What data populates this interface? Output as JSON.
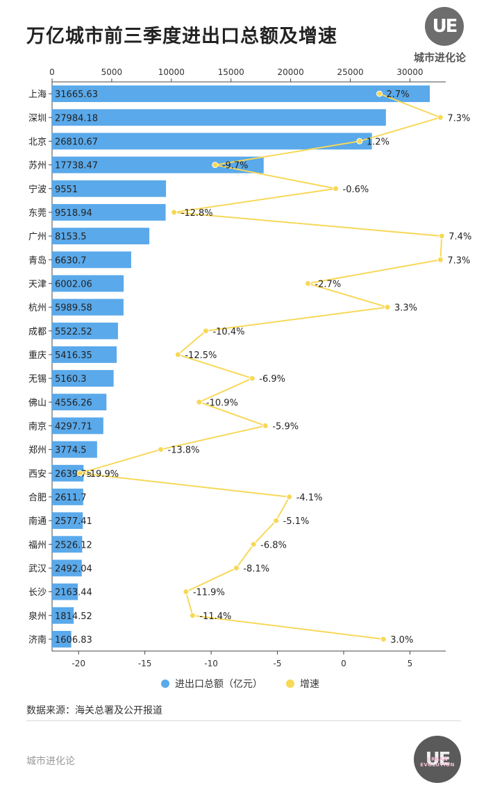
{
  "header": {
    "title": "万亿城市前三季度进出口总额及增速",
    "brand": "城市进化论",
    "logo_text": "UE",
    "logo_sub": "URBAN EVOLUTION"
  },
  "footer": {
    "source": "数据来源：海关总署及公开报道",
    "brand": "城市进化论"
  },
  "colors": {
    "bar": "#5aa9ea",
    "line": "#f7d857",
    "text": "#222222",
    "axis": "#444444"
  },
  "chart_data": {
    "type": "bar",
    "orientation": "horizontal",
    "categories": [
      "上海",
      "深圳",
      "北京",
      "苏州",
      "宁波",
      "东莞",
      "广州",
      "青岛",
      "天津",
      "杭州",
      "成都",
      "重庆",
      "无锡",
      "佛山",
      "南京",
      "郑州",
      "西安",
      "合肥",
      "南通",
      "福州",
      "武汉",
      "长沙",
      "泉州",
      "济南"
    ],
    "series": [
      {
        "name": "进出口总额（亿元）",
        "type": "bar",
        "axis": "top",
        "values": [
          31665.63,
          27984.18,
          26810.67,
          17738.47,
          9551,
          9518.94,
          8153.5,
          6630.7,
          6002.06,
          5989.58,
          5522.52,
          5416.35,
          5160.3,
          4556.26,
          4297.71,
          3774.5,
          2639.75,
          2611.7,
          2577.41,
          2526.12,
          2492.04,
          2163.44,
          1814.52,
          1606.83
        ],
        "labels": [
          "31665.63",
          "27984.18",
          "26810.67",
          "17738.47",
          "9551",
          "9518.94",
          "8153.5",
          "6630.7",
          "6002.06",
          "5989.58",
          "5522.52",
          "5416.35",
          "5160.3",
          "4556.26",
          "4297.71",
          "3774.5",
          "2639.75",
          "2611.7",
          "2577.41",
          "2526.12",
          "2492.04",
          "2163.44",
          "1814.52",
          "1606.83"
        ]
      },
      {
        "name": "增速",
        "type": "line",
        "axis": "bottom",
        "values": [
          2.7,
          7.3,
          1.2,
          -9.7,
          -0.6,
          -12.8,
          7.4,
          7.3,
          -2.7,
          3.3,
          -10.4,
          -12.5,
          -6.9,
          -10.9,
          -5.9,
          -13.8,
          -19.9,
          -4.1,
          -5.1,
          -6.8,
          -8.1,
          -11.9,
          -11.4,
          3.0
        ],
        "labels": [
          "2.7%",
          "7.3%",
          "1.2%",
          "-9.7%",
          "-0.6%",
          "-12.8%",
          "7.4%",
          "7.3%",
          "-2.7%",
          "3.3%",
          "-10.4%",
          "-12.5%",
          "-6.9%",
          "-10.9%",
          "-5.9%",
          "-13.8%",
          "-19.9%",
          "-4.1%",
          "-5.1%",
          "-6.8%",
          "-8.1%",
          "-11.9%",
          "-11.4%",
          "3.0%"
        ]
      }
    ],
    "top_axis": {
      "range": [
        0,
        33000
      ],
      "ticks": [
        0,
        5000,
        10000,
        15000,
        20000,
        25000,
        30000
      ],
      "tick_labels": [
        "0",
        "5000",
        "10000",
        "15000",
        "20000",
        "25000",
        "30000"
      ]
    },
    "bottom_axis": {
      "range": [
        -22,
        7.7
      ],
      "ticks": [
        -20,
        -15,
        -10,
        -5,
        0,
        5
      ],
      "tick_labels": [
        "-20",
        "-15",
        "-10",
        "-5",
        "0",
        "5"
      ]
    },
    "grid": false,
    "legend_position": "bottom"
  }
}
